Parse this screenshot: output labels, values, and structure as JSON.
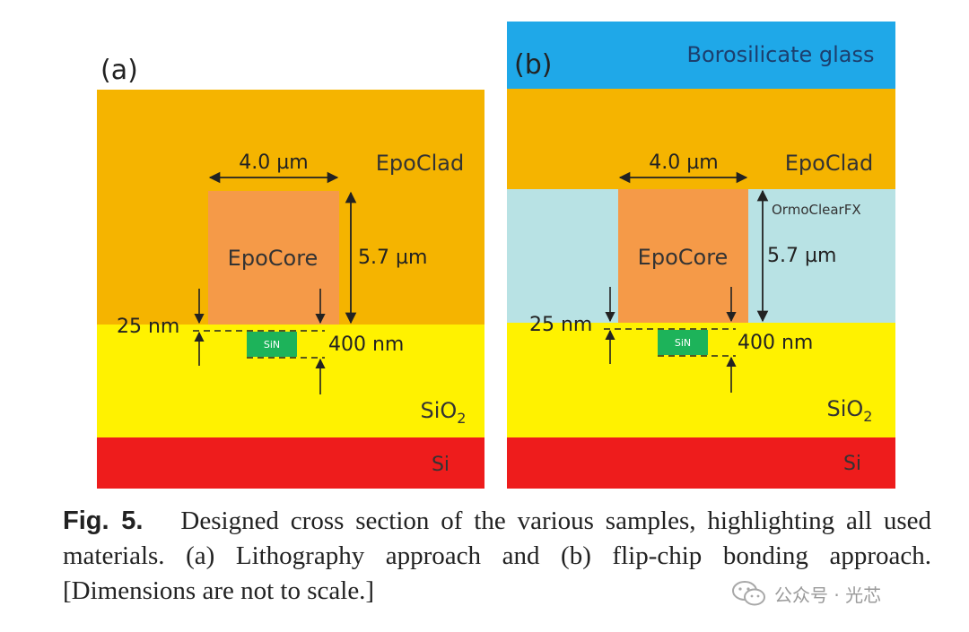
{
  "panel_a": {
    "label": "(a)",
    "cladding": "EpoClad",
    "core": "EpoCore",
    "width_dim": "4.0 µm",
    "height_dim": "5.7 µm",
    "gap_dim": "25 nm",
    "thickness_dim": "400 nm",
    "sin_label": "SiN",
    "oxide_label_base": "SiO",
    "oxide_label_sub": "2",
    "substrate": "Si"
  },
  "panel_b": {
    "label": "(b)",
    "top_layer": "Borosilicate glass",
    "cladding": "EpoClad",
    "side_cladding": "OrmoClearFX",
    "core": "EpoCore",
    "width_dim": "4.0 µm",
    "height_dim": "5.7 µm",
    "gap_dim": "25 nm",
    "thickness_dim": "400 nm",
    "sin_label": "SiN",
    "oxide_label_base": "SiO",
    "oxide_label_sub": "2",
    "substrate": "Si"
  },
  "colors": {
    "epoclad": "#F5B400",
    "epocore": "#F59A48",
    "sio2": "#FFF200",
    "si": "#EE1C1C",
    "sin": "#1DB35A",
    "glass": "#1FA8E8",
    "ormoclear": "#B8E2E4",
    "ink": "#222222"
  },
  "caption": {
    "fig_label": "Fig. 5.",
    "text": "Designed cross section of the various samples, highlighting all used materials. (a) Lithography approach and (b) flip-chip bonding approach. [Dimensions are not to scale.]"
  },
  "watermark": {
    "text": "公众号 · 光芯"
  }
}
